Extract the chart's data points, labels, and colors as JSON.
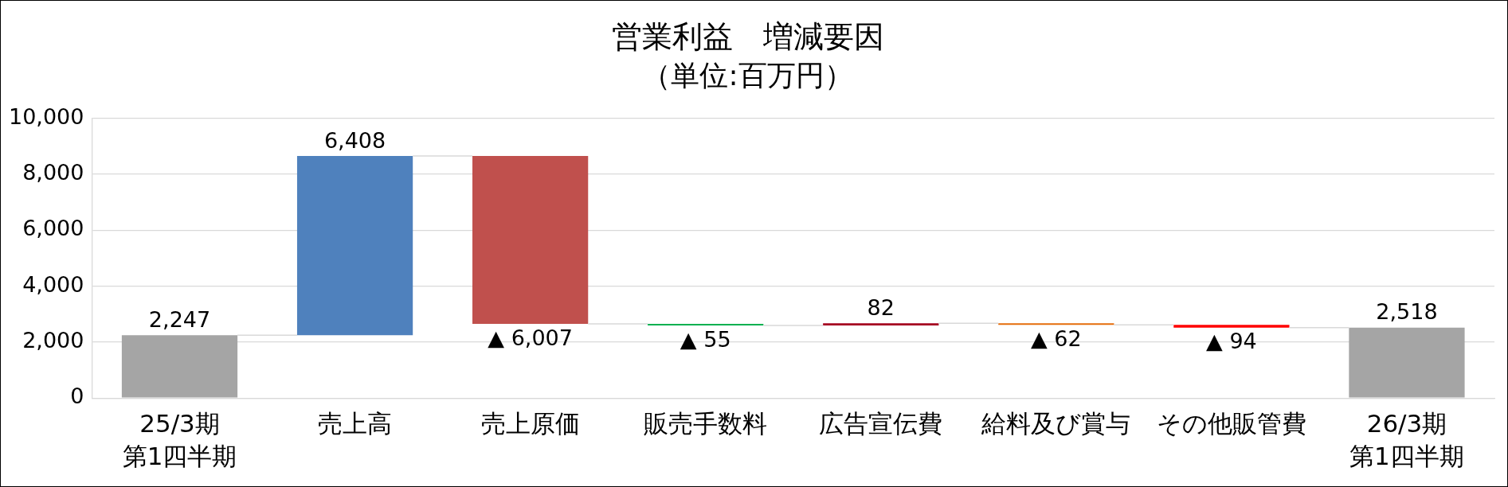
{
  "chart_data": {
    "type": "bar",
    "title": "営業利益　増減要因",
    "subtitle": "（単位:百万円）",
    "categories": [
      "25/3期第1四半期",
      "売上高",
      "売上原価",
      "販売手数料",
      "広告宣伝費",
      "給料及び賞与",
      "その他販管費",
      "26/3期第1四半期"
    ],
    "values": [
      2247,
      6408,
      -6007,
      -55,
      82,
      -62,
      -94,
      2518
    ],
    "base": [
      0,
      2247,
      8655,
      2648,
      2593,
      2675,
      2613,
      0
    ],
    "colors": [
      "#a5a5a5",
      "#4f81bd",
      "#c0504d",
      "#00b050",
      "#a50021",
      "#e46c0a",
      "#ff0000",
      "#a5a5a5"
    ],
    "value_labels": [
      "2,247",
      "6,408",
      "▲ 6,007",
      "▲ 55",
      "82",
      "▲ 62",
      "▲ 94",
      "2,518"
    ],
    "ylim": [
      0,
      10000
    ],
    "yticks": [
      {
        "value": 0,
        "label": "0"
      },
      {
        "value": 2000,
        "label": "2,000"
      },
      {
        "value": 4000,
        "label": "4,000"
      },
      {
        "value": 6000,
        "label": "6,000"
      },
      {
        "value": 8000,
        "label": "8,000"
      },
      {
        "value": 10000,
        "label": "10,000"
      }
    ],
    "grid": "y"
  }
}
